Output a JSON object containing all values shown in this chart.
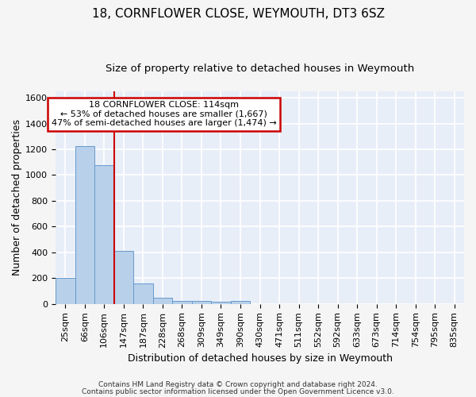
{
  "title1": "18, CORNFLOWER CLOSE, WEYMOUTH, DT3 6SZ",
  "title2": "Size of property relative to detached houses in Weymouth",
  "xlabel": "Distribution of detached houses by size in Weymouth",
  "ylabel": "Number of detached properties",
  "categories": [
    "25sqm",
    "66sqm",
    "106sqm",
    "147sqm",
    "187sqm",
    "228sqm",
    "268sqm",
    "309sqm",
    "349sqm",
    "390sqm",
    "430sqm",
    "471sqm",
    "511sqm",
    "552sqm",
    "592sqm",
    "633sqm",
    "673sqm",
    "714sqm",
    "754sqm",
    "795sqm",
    "835sqm"
  ],
  "values": [
    203,
    1225,
    1075,
    410,
    160,
    50,
    25,
    22,
    15,
    20,
    0,
    0,
    0,
    0,
    0,
    0,
    0,
    0,
    0,
    0,
    0
  ],
  "bar_color": "#b8d0ea",
  "bar_edge_color": "#6699cc",
  "background_color": "#e8eef8",
  "grid_color": "#ffffff",
  "vline_color": "#cc0000",
  "vline_pos": 2.5,
  "ylim": [
    0,
    1650
  ],
  "yticks": [
    0,
    200,
    400,
    600,
    800,
    1000,
    1200,
    1400,
    1600
  ],
  "annotation_text": "18 CORNFLOWER CLOSE: 114sqm\n← 53% of detached houses are smaller (1,667)\n47% of semi-detached houses are larger (1,474) →",
  "annotation_box_color": "#ffffff",
  "annotation_box_edge_color": "#cc0000",
  "footer1": "Contains HM Land Registry data © Crown copyright and database right 2024.",
  "footer2": "Contains public sector information licensed under the Open Government Licence v3.0.",
  "title1_fontsize": 11,
  "title2_fontsize": 9.5,
  "ylabel_fontsize": 9,
  "xlabel_fontsize": 9,
  "tick_fontsize": 8,
  "footer_fontsize": 6.5
}
